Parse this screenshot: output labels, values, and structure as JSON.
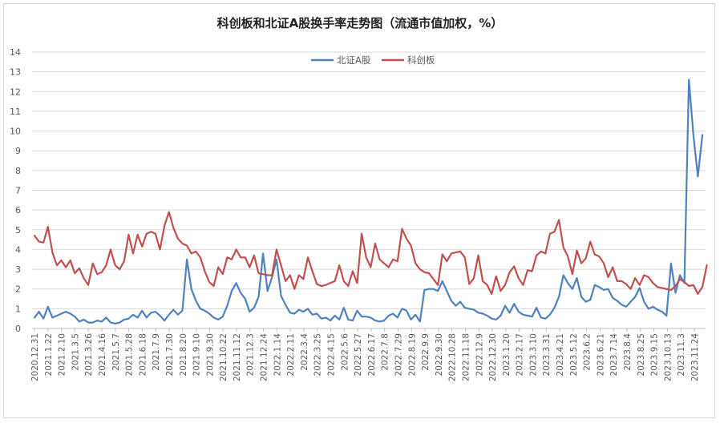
{
  "chart_data": {
    "type": "line",
    "title": "科创板和北证A股换手率走势图（流通市值加权，%）",
    "xlabel": "",
    "ylabel": "",
    "ylim": [
      0,
      14
    ],
    "yticks": [
      0,
      1,
      2,
      3,
      4,
      5,
      6,
      7,
      8,
      9,
      10,
      11,
      12,
      13,
      14
    ],
    "grid": true,
    "legend_position": "top-center",
    "x_tick_labels": [
      "2020.12.31",
      "2021.1.22",
      "2021.2.10",
      "2021.3.5",
      "2021.3.26",
      "2021.4.16",
      "2021.5.7",
      "2021.5.28",
      "2021.6.18",
      "2021.7.9",
      "2021.7.30",
      "2021.8.20",
      "2021.9.10",
      "2021.9.30",
      "2021.10.22",
      "2021.11.12",
      "2021.12.3",
      "2021.12.24",
      "2022.1.14",
      "2022.2.11",
      "2022.3.4",
      "2022.3.25",
      "2022.4.15",
      "2022.5.6",
      "2022.5.27",
      "2022.6.17",
      "2022.7.8",
      "2022.7.29",
      "2022.8.19",
      "2022.9.9",
      "2022.9.30",
      "2022.10.28",
      "2022.11.18",
      "2022.12.9",
      "2022.12.30",
      "2023.1.20",
      "2023.2.17",
      "2023.3.10",
      "2023.3.31",
      "2023.4.21",
      "2023.5.12",
      "2023.6.2",
      "2023.6.21",
      "2023.7.14",
      "2023.8.4",
      "2023.8.25",
      "2023.9.15",
      "2023.10.13",
      "2023.11.3",
      "2023.11.24"
    ],
    "series": [
      {
        "name": "北证A股",
        "color": "#4f81bd",
        "values": [
          0.55,
          0.85,
          0.5,
          1.1,
          0.55,
          0.65,
          0.75,
          0.85,
          0.75,
          0.6,
          0.35,
          0.45,
          0.3,
          0.3,
          0.4,
          0.35,
          0.55,
          0.3,
          0.25,
          0.3,
          0.45,
          0.5,
          0.7,
          0.55,
          0.9,
          0.55,
          0.8,
          0.85,
          0.65,
          0.4,
          0.7,
          0.95,
          0.7,
          0.9,
          3.5,
          2.0,
          1.4,
          1.0,
          0.9,
          0.75,
          0.55,
          0.45,
          0.6,
          1.15,
          1.9,
          2.3,
          1.8,
          1.5,
          0.85,
          1.05,
          1.6,
          3.8,
          1.9,
          2.6,
          3.5,
          1.65,
          1.2,
          0.8,
          0.75,
          0.95,
          0.85,
          1.0,
          0.7,
          0.75,
          0.5,
          0.55,
          0.4,
          0.65,
          0.45,
          1.05,
          0.45,
          0.4,
          0.9,
          0.6,
          0.6,
          0.55,
          0.4,
          0.35,
          0.4,
          0.65,
          0.75,
          0.55,
          1.0,
          0.9,
          0.45,
          0.7,
          0.35,
          1.95,
          2.0,
          2.0,
          1.9,
          2.4,
          1.9,
          1.4,
          1.15,
          1.35,
          1.05,
          1.0,
          0.95,
          0.8,
          0.75,
          0.65,
          0.5,
          0.45,
          0.65,
          1.15,
          0.8,
          1.25,
          0.85,
          0.7,
          0.65,
          0.6,
          1.05,
          0.55,
          0.5,
          0.7,
          1.05,
          1.6,
          2.7,
          2.3,
          2.0,
          2.55,
          1.6,
          1.35,
          1.45,
          2.2,
          2.1,
          1.95,
          2.0,
          1.55,
          1.4,
          1.2,
          1.1,
          1.35,
          1.6,
          2.05,
          1.35,
          1.0,
          1.1,
          0.95,
          0.85,
          0.65,
          3.3,
          1.8,
          2.7,
          2.3,
          12.6,
          9.8,
          7.7,
          9.8
        ]
      },
      {
        "name": "科创板",
        "color": "#c0504d",
        "values": [
          4.7,
          4.4,
          4.35,
          5.15,
          3.85,
          3.2,
          3.45,
          3.1,
          3.45,
          2.8,
          3.05,
          2.55,
          2.2,
          3.3,
          2.75,
          2.85,
          3.2,
          4.0,
          3.2,
          3.0,
          3.4,
          4.75,
          3.8,
          4.75,
          4.15,
          4.8,
          4.9,
          4.8,
          4.0,
          5.2,
          5.9,
          5.1,
          4.55,
          4.3,
          4.2,
          3.8,
          3.9,
          3.6,
          2.9,
          2.35,
          2.15,
          3.1,
          2.75,
          3.6,
          3.5,
          4.0,
          3.6,
          3.6,
          3.1,
          3.7,
          2.8,
          2.75,
          2.7,
          2.7,
          4.0,
          3.2,
          2.4,
          2.7,
          2.0,
          2.7,
          2.5,
          3.6,
          2.9,
          2.25,
          2.15,
          2.2,
          2.3,
          2.4,
          3.2,
          2.4,
          2.15,
          2.9,
          2.3,
          4.8,
          3.6,
          3.1,
          4.3,
          3.5,
          3.3,
          3.1,
          3.5,
          3.4,
          5.05,
          4.55,
          4.2,
          3.3,
          3.0,
          2.85,
          2.8,
          2.5,
          2.2,
          3.75,
          3.4,
          3.8,
          3.85,
          3.9,
          3.6,
          2.25,
          2.55,
          3.7,
          2.4,
          2.2,
          1.75,
          2.65,
          1.9,
          2.2,
          2.85,
          3.15,
          2.55,
          2.2,
          2.95,
          2.9,
          3.7,
          3.9,
          3.8,
          4.8,
          4.9,
          5.5,
          4.1,
          3.65,
          2.75,
          3.95,
          3.3,
          3.55,
          4.4,
          3.75,
          3.65,
          3.3,
          2.6,
          3.1,
          2.4,
          2.4,
          2.25,
          2.0,
          2.55,
          2.2,
          2.7,
          2.6,
          2.3,
          2.1,
          2.05,
          2.0,
          1.95,
          2.15,
          2.5,
          2.35,
          2.15,
          2.2,
          1.75,
          2.1,
          3.2
        ]
      }
    ]
  }
}
